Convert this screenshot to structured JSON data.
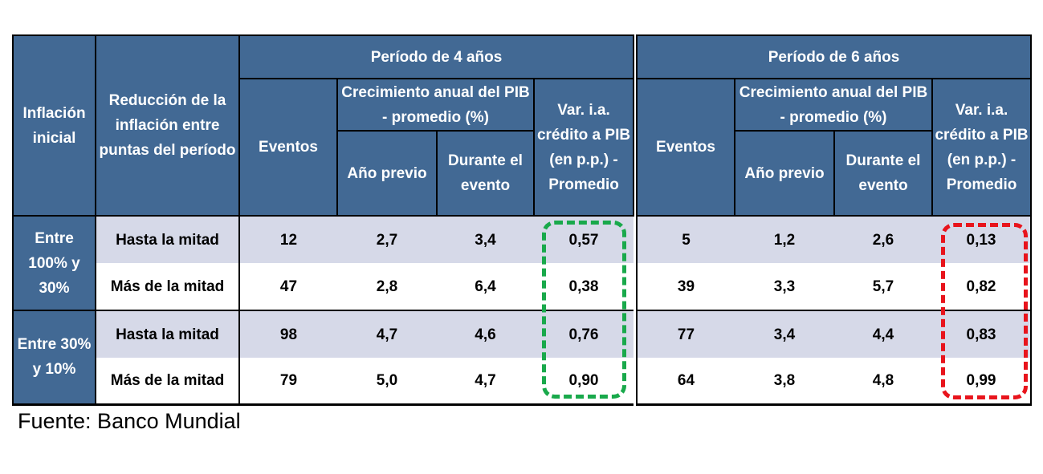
{
  "headers": {
    "inflation_initial": "Inflación inicial",
    "reduction": "Reducción de la inflación entre puntas del período"
  },
  "sub_headers": {
    "events": "Eventos",
    "gdp_growth": "Crecimiento anual del PIB - promedio (%)",
    "prev_year": "Año previo",
    "during": "Durante el evento",
    "credit": "Var. i.a. crédito a PIB (en p.p.) - Promedio"
  },
  "groups": [
    "Entre 100% y 30%",
    "Entre 30% y 10%"
  ],
  "row_labels": [
    "Hasta la mitad",
    "Más de la mitad",
    "Hasta la mitad",
    "Más de la mitad"
  ],
  "periods": [
    {
      "title": "Período de 4 años",
      "highlight_color": "#19a94b",
      "rows": [
        [
          "12",
          "2,7",
          "3,4",
          "0,57"
        ],
        [
          "47",
          "2,8",
          "6,4",
          "0,38"
        ],
        [
          "98",
          "4,7",
          "4,6",
          "0,76"
        ],
        [
          "79",
          "5,0",
          "4,7",
          "0,90"
        ]
      ]
    },
    {
      "title": "Período de 6 años",
      "highlight_color": "#e8141c",
      "rows": [
        [
          "5",
          "1,2",
          "2,6",
          "0,13"
        ],
        [
          "39",
          "3,3",
          "5,7",
          "0,82"
        ],
        [
          "77",
          "3,4",
          "4,4",
          "0,83"
        ],
        [
          "64",
          "3,8",
          "4,8",
          "0,99"
        ]
      ]
    }
  ],
  "source": "Fuente: Banco Mundial",
  "colors": {
    "header": "#426994",
    "stripe": "#d6d9e8"
  }
}
